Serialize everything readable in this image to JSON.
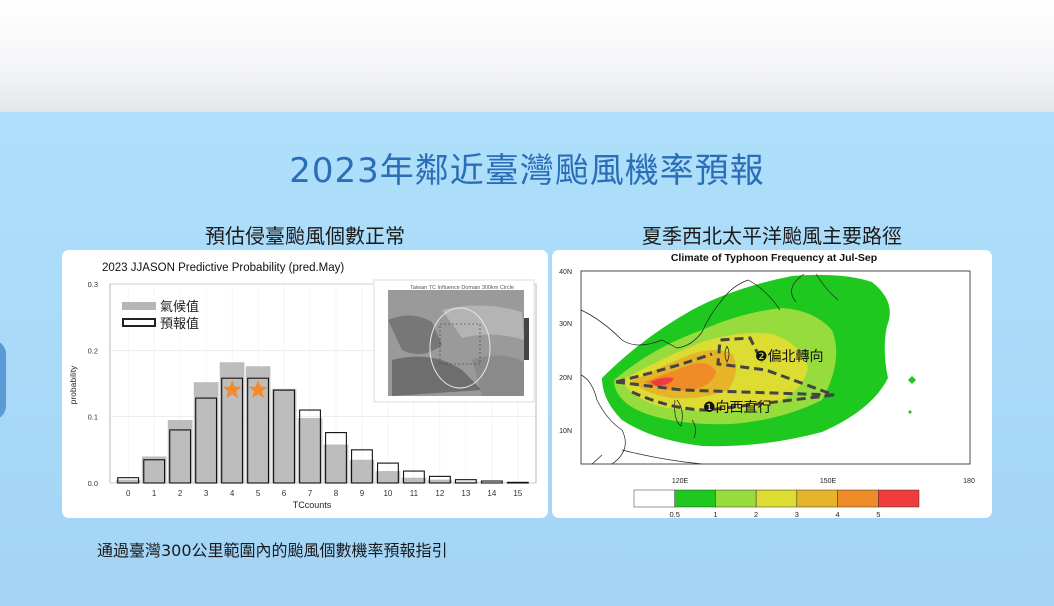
{
  "page": {
    "title": "2023年鄰近臺灣颱風機率預報",
    "left_subtitle": "預估侵臺颱風個數正常",
    "right_subtitle": "夏季西北太平洋颱風主要路徑",
    "caption": "通過臺灣300公里範圍內的颱風個數機率預報指引"
  },
  "colors": {
    "accent": "#2c6db8",
    "climo_bar": "#bdbdbd",
    "star": "#f28a2e"
  },
  "chart_data": [
    {
      "type": "bar",
      "title": "2023 JJASON Predictive Probability (pred.May)",
      "xlabel": "TCcounts",
      "ylabel": "probability",
      "categories": [
        "0",
        "1",
        "2",
        "3",
        "4",
        "5",
        "6",
        "7",
        "8",
        "9",
        "10",
        "11",
        "12",
        "13",
        "14",
        "15"
      ],
      "yticks": [
        "0.0",
        "0.1",
        "0.2",
        "0.3"
      ],
      "ylim": [
        0,
        0.3
      ],
      "grid": true,
      "legend_position": "top-left",
      "series": [
        {
          "name": "氣候值",
          "style": "filled gray",
          "values": [
            0.005,
            0.04,
            0.095,
            0.152,
            0.182,
            0.176,
            0.142,
            0.098,
            0.058,
            0.035,
            0.018,
            0.008,
            0.005,
            0.002,
            0.001,
            0.0
          ]
        },
        {
          "name": "預報值",
          "style": "outline",
          "values": [
            0.008,
            0.035,
            0.08,
            0.128,
            0.158,
            0.158,
            0.14,
            0.11,
            0.076,
            0.05,
            0.03,
            0.018,
            0.01,
            0.005,
            0.003,
            0.001
          ]
        }
      ],
      "markers": [
        {
          "category": "4",
          "symbol": "star"
        },
        {
          "category": "5",
          "symbol": "star"
        }
      ],
      "inset": {
        "title": "Taiwan TC Influence Domain 300km Circle"
      }
    },
    {
      "type": "heatmap",
      "title": "Climate of Typhoon Frequency at Jul-Sep",
      "x_ticks": [
        "120E",
        "150E",
        "180"
      ],
      "y_ticks": [
        "40N",
        "30N",
        "20N",
        "10N"
      ],
      "colorbar": {
        "levels": [
          "0.5",
          "1",
          "2",
          "3",
          "4",
          "5"
        ],
        "colors": [
          "#ffffff",
          "#1ec81e",
          "#96dc3c",
          "#dcdc32",
          "#e6b428",
          "#f08c28",
          "#f03c3c"
        ]
      },
      "annotations": [
        "❷偏北轉向",
        "❶向西直行"
      ]
    }
  ]
}
